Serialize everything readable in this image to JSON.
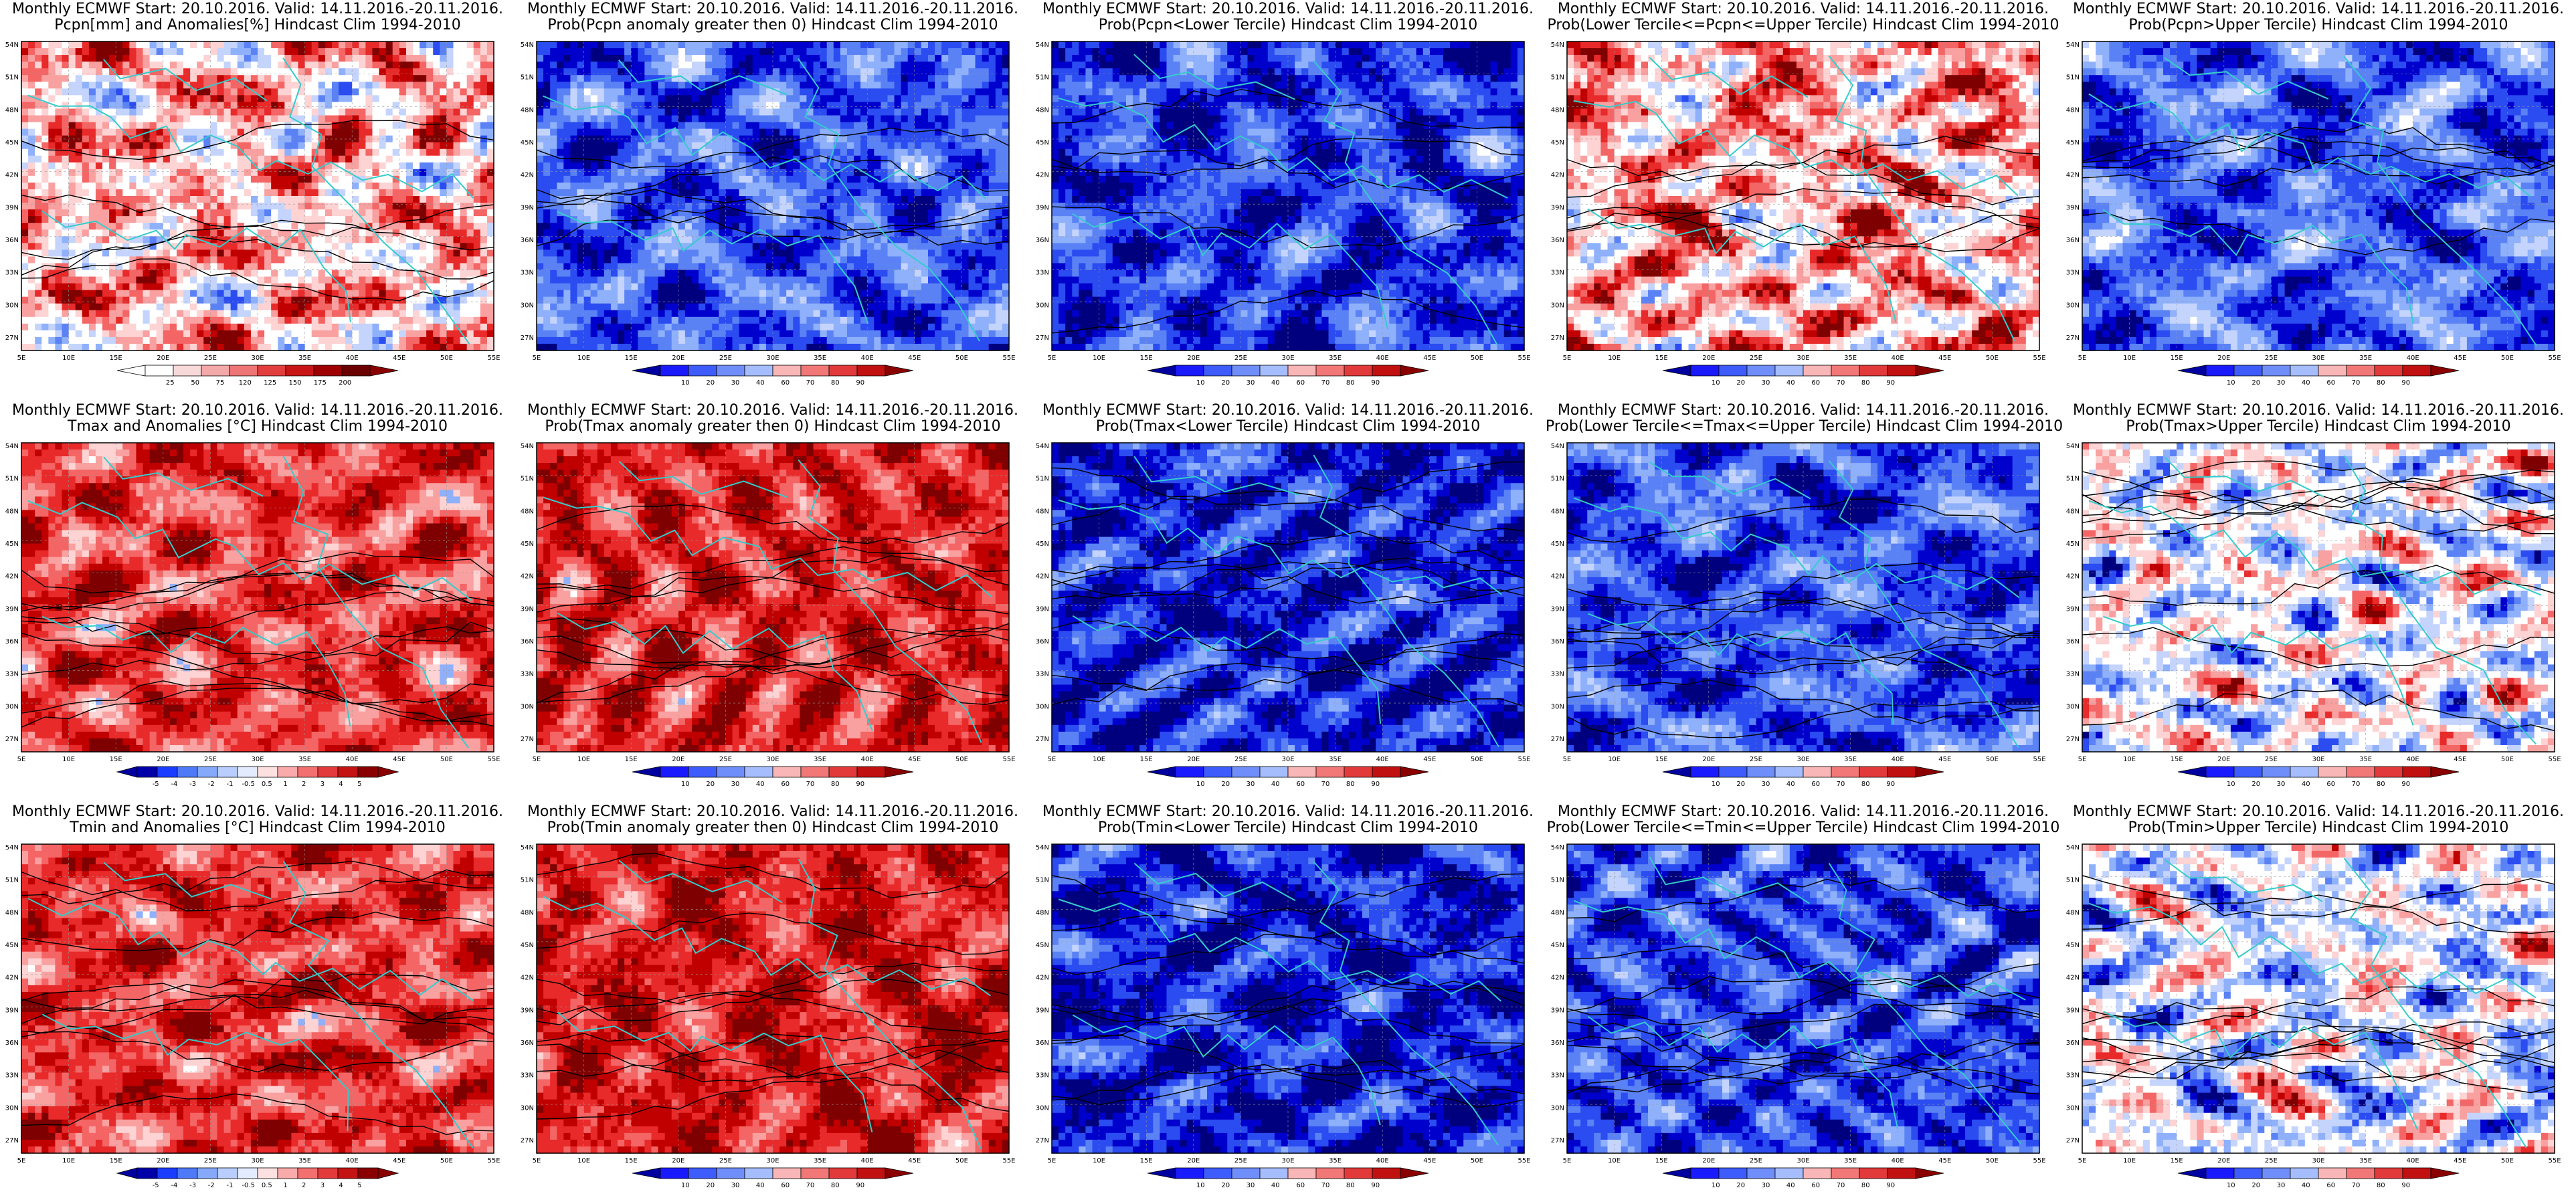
{
  "lat_labels": [
    "54N",
    "51N",
    "48N",
    "45N",
    "42N",
    "39N",
    "36N",
    "33N",
    "30N",
    "27N"
  ],
  "lon_labels": [
    "5E",
    "10E",
    "15E",
    "20E",
    "25E",
    "30E",
    "35E",
    "40E",
    "45E",
    "50E",
    "55E"
  ],
  "colors": {
    "coast": "#33cccc",
    "contour": "#000000",
    "blue_scale": [
      "#00007f",
      "#0000cc",
      "#2a4cf0",
      "#5b82f5",
      "#8fb0fb",
      "#c4d4fd",
      "#ffffff"
    ],
    "red_scale": [
      "#ffffff",
      "#fdd3d3",
      "#f9a0a0",
      "#f46565",
      "#e82a2a",
      "#c00000",
      "#7f0000"
    ]
  },
  "colorbars": {
    "pcpn_anom": [
      "25",
      "50",
      "75",
      "120",
      "125",
      "150",
      "175",
      "200"
    ],
    "prob": [
      "10",
      "20",
      "30",
      "40",
      "60",
      "70",
      "80",
      "90"
    ],
    "temp_anom": [
      "-5",
      "-4",
      "-3",
      "-2",
      "-1",
      "-0.5",
      "0.5",
      "1",
      "2",
      "3",
      "4",
      "5"
    ]
  },
  "panels": [
    {
      "name": "pcpn-anomalies",
      "line1": "Monthly ECMWF Start: 20.10.2016. Valid: 14.11.2016.-20.11.2016.",
      "line2": "Pcpn[mm] and Anomalies[%] Hindcast Clim 1994-2010",
      "cbar": "pcpn_anom",
      "style": "diverge",
      "seed": 11,
      "bias": -0.25
    },
    {
      "name": "prob-pcpn-gt0",
      "line1": "Monthly ECMWF Start: 20.10.2016. Valid: 14.11.2016.-20.11.2016.",
      "line2": "Prob(Pcpn anomaly greater then 0) Hindcast Clim 1994-2010",
      "cbar": "prob",
      "style": "blue",
      "seed": 23,
      "bias": 0.2
    },
    {
      "name": "prob-pcpn-lower",
      "line1": "Monthly ECMWF Start: 20.10.2016. Valid: 14.11.2016.-20.11.2016.",
      "line2": "Prob(Pcpn<Lower Tercile) Hindcast Clim 1994-2010",
      "cbar": "prob",
      "style": "blue",
      "seed": 37,
      "bias": 0.35
    },
    {
      "name": "prob-pcpn-middle",
      "line1": "Monthly ECMWF Start: 20.10.2016. Valid: 14.11.2016.-20.11.2016.",
      "line2": "Prob(Lower Tercile<=Pcpn<=Upper Tercile) Hindcast Clim 1994-2010",
      "cbar": "prob",
      "style": "diverge",
      "seed": 41,
      "bias": -0.3
    },
    {
      "name": "prob-pcpn-upper",
      "line1": "Monthly ECMWF Start: 20.10.2016. Valid: 14.11.2016.-20.11.2016.",
      "line2": "Prob(Pcpn>Upper Tercile) Hindcast Clim 1994-2010",
      "cbar": "prob",
      "style": "blue",
      "seed": 53,
      "bias": 0.15
    },
    {
      "name": "tmax-anomalies",
      "line1": "Monthly ECMWF Start: 20.10.2016. Valid: 14.11.2016.-20.11.2016.",
      "line2": "Tmax and Anomalies [°C] Hindcast Clim 1994-2010",
      "cbar": "temp_anom",
      "style": "red",
      "seed": 61,
      "bias": 0.2
    },
    {
      "name": "prob-tmax-gt0",
      "line1": "Monthly ECMWF Start: 20.10.2016. Valid: 14.11.2016.-20.11.2016.",
      "line2": "Prob(Tmax anomaly greater then 0) Hindcast Clim 1994-2010",
      "cbar": "prob",
      "style": "red",
      "seed": 67,
      "bias": 0.35
    },
    {
      "name": "prob-tmax-lower",
      "line1": "Monthly ECMWF Start: 20.10.2016. Valid: 14.11.2016.-20.11.2016.",
      "line2": "Prob(Tmax<Lower Tercile) Hindcast Clim 1994-2010",
      "cbar": "prob",
      "style": "blue",
      "seed": 71,
      "bias": 0.45
    },
    {
      "name": "prob-tmax-middle",
      "line1": "Monthly ECMWF Start: 20.10.2016. Valid: 14.11.2016.-20.11.2016.",
      "line2": "Prob(Lower Tercile<=Tmax<=Upper Tercile) Hindcast Clim 1994-2010",
      "cbar": "prob",
      "style": "blue",
      "seed": 79,
      "bias": 0.25
    },
    {
      "name": "prob-tmax-upper",
      "line1": "Monthly ECMWF Start: 20.10.2016. Valid: 14.11.2016.-20.11.2016.",
      "line2": "Prob(Tmax>Upper Tercile) Hindcast Clim 1994-2010",
      "cbar": "prob",
      "style": "diverge",
      "seed": 83,
      "bias": 0.05
    },
    {
      "name": "tmin-anomalies",
      "line1": "Monthly ECMWF Start: 20.10.2016. Valid: 14.11.2016.-20.11.2016.",
      "line2": "Tmin and Anomalies [°C] Hindcast Clim 1994-2010",
      "cbar": "temp_anom",
      "style": "red",
      "seed": 89,
      "bias": 0.25
    },
    {
      "name": "prob-tmin-gt0",
      "line1": "Monthly ECMWF Start: 20.10.2016. Valid: 14.11.2016.-20.11.2016.",
      "line2": "Prob(Tmin anomaly greater then 0) Hindcast Clim 1994-2010",
      "cbar": "prob",
      "style": "red",
      "seed": 97,
      "bias": 0.4
    },
    {
      "name": "prob-tmin-lower",
      "line1": "Monthly ECMWF Start: 20.10.2016. Valid: 14.11.2016.-20.11.2016.",
      "line2": "Prob(Tmin<Lower Tercile) Hindcast Clim 1994-2010",
      "cbar": "prob",
      "style": "blue",
      "seed": 101,
      "bias": 0.5
    },
    {
      "name": "prob-tmin-middle",
      "line1": "Monthly ECMWF Start: 20.10.2016. Valid: 14.11.2016.-20.11.2016.",
      "line2": "Prob(Lower Tercile<=Tmin<=Upper Tercile) Hindcast Clim 1994-2010",
      "cbar": "prob",
      "style": "blue",
      "seed": 103,
      "bias": 0.3
    },
    {
      "name": "prob-tmin-upper",
      "line1": "Monthly ECMWF Start: 20.10.2016. Valid: 14.11.2016.-20.11.2016.",
      "line2": "Prob(Tmin>Upper Tercile) Hindcast Clim 1994-2010",
      "cbar": "prob",
      "style": "diverge",
      "seed": 107,
      "bias": 0.1
    }
  ]
}
